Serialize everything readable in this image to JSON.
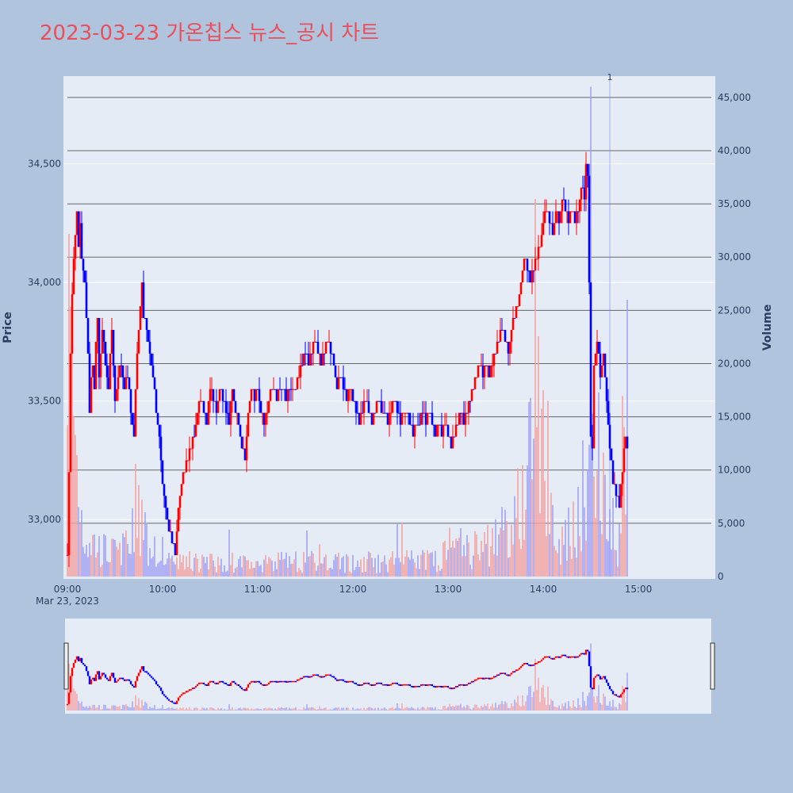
{
  "chart_data": {
    "type": "candlestick",
    "title": "2023-03-23 가온칩스 뉴스_공시 차트",
    "date_label": "Mar 23, 2023",
    "y_axis_title": "Price",
    "y2_axis_title": "Volume",
    "x_ticks": [
      "09:00",
      "10:00",
      "11:00",
      "12:00",
      "13:00",
      "14:00",
      "15:00"
    ],
    "y_ticks": [
      "33,000",
      "33,500",
      "34,000",
      "34,500"
    ],
    "y_tick_values": [
      33000,
      33500,
      34000,
      34500
    ],
    "y2_ticks": [
      "0",
      "5,000",
      "10,000",
      "15,000",
      "20,000",
      "25,000",
      "30,000",
      "35,000",
      "40,000",
      "45,000"
    ],
    "y2_tick_values": [
      0,
      5000,
      10000,
      15000,
      20000,
      25000,
      30000,
      35000,
      40000,
      45000
    ],
    "x_range_minutes": [
      0,
      390
    ],
    "y_range": [
      32750,
      34870
    ],
    "y2_range": [
      0,
      47000
    ],
    "annotation": {
      "text": "1",
      "time_minutes": 342
    },
    "colors": {
      "up": "#ff0000",
      "down": "#0000ff",
      "up_volume": "#f4a3a3",
      "down_volume": "#a3a3f4",
      "plot_bg": "#e5ecf6",
      "page_bg": "#b0c4de",
      "grid": "#ffffff",
      "volume_grid": "#666666",
      "title": "#e8505b"
    },
    "price_anchors": [
      [
        0,
        32850
      ],
      [
        1,
        33200
      ],
      [
        2,
        33700
      ],
      [
        3,
        33950
      ],
      [
        4,
        34100
      ],
      [
        5,
        34200
      ],
      [
        6,
        34300
      ],
      [
        7,
        34150
      ],
      [
        8,
        34250
      ],
      [
        9,
        34100
      ],
      [
        10,
        34050
      ],
      [
        11,
        34000
      ],
      [
        12,
        33850
      ],
      [
        13,
        33700
      ],
      [
        14,
        33450
      ],
      [
        15,
        33600
      ],
      [
        16,
        33650
      ],
      [
        17,
        33550
      ],
      [
        18,
        33750
      ],
      [
        19,
        33850
      ],
      [
        20,
        33600
      ],
      [
        22,
        33800
      ],
      [
        24,
        33650
      ],
      [
        26,
        33550
      ],
      [
        28,
        33800
      ],
      [
        30,
        33500
      ],
      [
        32,
        33600
      ],
      [
        34,
        33650
      ],
      [
        36,
        33550
      ],
      [
        38,
        33600
      ],
      [
        40,
        33450
      ],
      [
        42,
        33350
      ],
      [
        44,
        33700
      ],
      [
        46,
        33900
      ],
      [
        47,
        34000
      ],
      [
        48,
        33850
      ],
      [
        50,
        33800
      ],
      [
        52,
        33700
      ],
      [
        54,
        33600
      ],
      [
        56,
        33450
      ],
      [
        58,
        33350
      ],
      [
        60,
        33150
      ],
      [
        62,
        33050
      ],
      [
        64,
        32950
      ],
      [
        66,
        32900
      ],
      [
        68,
        32850
      ],
      [
        70,
        33050
      ],
      [
        72,
        33150
      ],
      [
        74,
        33200
      ],
      [
        76,
        33250
      ],
      [
        78,
        33300
      ],
      [
        80,
        33350
      ],
      [
        82,
        33450
      ],
      [
        84,
        33500
      ],
      [
        86,
        33450
      ],
      [
        88,
        33400
      ],
      [
        90,
        33550
      ],
      [
        92,
        33500
      ],
      [
        94,
        33450
      ],
      [
        96,
        33550
      ],
      [
        98,
        33500
      ],
      [
        100,
        33450
      ],
      [
        102,
        33400
      ],
      [
        104,
        33550
      ],
      [
        106,
        33450
      ],
      [
        108,
        33400
      ],
      [
        110,
        33300
      ],
      [
        112,
        33250
      ],
      [
        114,
        33450
      ],
      [
        116,
        33550
      ],
      [
        118,
        33500
      ],
      [
        120,
        33550
      ],
      [
        122,
        33450
      ],
      [
        124,
        33400
      ],
      [
        126,
        33450
      ],
      [
        128,
        33550
      ],
      [
        130,
        33550
      ],
      [
        132,
        33500
      ],
      [
        134,
        33550
      ],
      [
        136,
        33550
      ],
      [
        138,
        33500
      ],
      [
        140,
        33550
      ],
      [
        142,
        33550
      ],
      [
        144,
        33550
      ],
      [
        146,
        33600
      ],
      [
        148,
        33650
      ],
      [
        150,
        33700
      ],
      [
        152,
        33650
      ],
      [
        154,
        33700
      ],
      [
        156,
        33750
      ],
      [
        158,
        33700
      ],
      [
        160,
        33650
      ],
      [
        162,
        33700
      ],
      [
        164,
        33750
      ],
      [
        166,
        33700
      ],
      [
        168,
        33650
      ],
      [
        170,
        33550
      ],
      [
        172,
        33600
      ],
      [
        174,
        33550
      ],
      [
        176,
        33500
      ],
      [
        178,
        33550
      ],
      [
        180,
        33500
      ],
      [
        182,
        33450
      ],
      [
        184,
        33400
      ],
      [
        186,
        33450
      ],
      [
        188,
        33500
      ],
      [
        190,
        33450
      ],
      [
        192,
        33400
      ],
      [
        194,
        33450
      ],
      [
        196,
        33500
      ],
      [
        198,
        33450
      ],
      [
        200,
        33450
      ],
      [
        202,
        33400
      ],
      [
        204,
        33450
      ],
      [
        206,
        33500
      ],
      [
        208,
        33450
      ],
      [
        210,
        33400
      ],
      [
        212,
        33450
      ],
      [
        214,
        33450
      ],
      [
        216,
        33400
      ],
      [
        218,
        33350
      ],
      [
        220,
        33400
      ],
      [
        222,
        33400
      ],
      [
        224,
        33450
      ],
      [
        226,
        33400
      ],
      [
        228,
        33450
      ],
      [
        230,
        33400
      ],
      [
        232,
        33350
      ],
      [
        234,
        33400
      ],
      [
        236,
        33350
      ],
      [
        238,
        33400
      ],
      [
        240,
        33350
      ],
      [
        242,
        33300
      ],
      [
        244,
        33350
      ],
      [
        246,
        33400
      ],
      [
        248,
        33450
      ],
      [
        250,
        33400
      ],
      [
        252,
        33450
      ],
      [
        254,
        33500
      ],
      [
        256,
        33550
      ],
      [
        258,
        33600
      ],
      [
        260,
        33650
      ],
      [
        262,
        33600
      ],
      [
        264,
        33650
      ],
      [
        266,
        33600
      ],
      [
        268,
        33650
      ],
      [
        270,
        33700
      ],
      [
        272,
        33750
      ],
      [
        274,
        33800
      ],
      [
        276,
        33750
      ],
      [
        278,
        33700
      ],
      [
        280,
        33800
      ],
      [
        282,
        33850
      ],
      [
        284,
        33900
      ],
      [
        286,
        34000
      ],
      [
        288,
        34100
      ],
      [
        290,
        34050
      ],
      [
        292,
        34000
      ],
      [
        294,
        34050
      ],
      [
        296,
        34100
      ],
      [
        298,
        34150
      ],
      [
        300,
        34250
      ],
      [
        302,
        34300
      ],
      [
        304,
        34250
      ],
      [
        306,
        34200
      ],
      [
        308,
        34300
      ],
      [
        310,
        34250
      ],
      [
        312,
        34350
      ],
      [
        314,
        34300
      ],
      [
        316,
        34250
      ],
      [
        318,
        34300
      ],
      [
        320,
        34250
      ],
      [
        322,
        34300
      ],
      [
        324,
        34400
      ],
      [
        326,
        34350
      ],
      [
        327,
        34500
      ],
      [
        328,
        34450
      ],
      [
        329,
        34000
      ],
      [
        330,
        33350
      ],
      [
        331,
        33300
      ],
      [
        332,
        33650
      ],
      [
        334,
        33750
      ],
      [
        336,
        33600
      ],
      [
        338,
        33700
      ],
      [
        340,
        33500
      ],
      [
        342,
        33300
      ],
      [
        344,
        33150
      ],
      [
        346,
        33100
      ],
      [
        348,
        33050
      ],
      [
        350,
        33200
      ],
      [
        352,
        33350
      ],
      [
        353,
        33300
      ]
    ],
    "volume_profile": [
      [
        0,
        30000
      ],
      [
        3,
        22000
      ],
      [
        6,
        12000
      ],
      [
        10,
        5000
      ],
      [
        20,
        3000
      ],
      [
        30,
        2500
      ],
      [
        40,
        3500
      ],
      [
        45,
        10000
      ],
      [
        48,
        4500
      ],
      [
        55,
        3500
      ],
      [
        60,
        2500
      ],
      [
        70,
        1500
      ],
      [
        100,
        1500
      ],
      [
        150,
        1600
      ],
      [
        200,
        1600
      ],
      [
        230,
        2000
      ],
      [
        260,
        3000
      ],
      [
        280,
        5000
      ],
      [
        290,
        10000
      ],
      [
        296,
        18000
      ],
      [
        300,
        8000
      ],
      [
        310,
        3500
      ],
      [
        320,
        5000
      ],
      [
        328,
        15000
      ],
      [
        330,
        46000
      ],
      [
        332,
        20000
      ],
      [
        336,
        12000
      ],
      [
        340,
        6000
      ],
      [
        348,
        4000
      ],
      [
        353,
        25000
      ]
    ],
    "volume_spikes": [
      [
        300,
        17500
      ],
      [
        303,
        16500
      ],
      [
        328,
        10000
      ],
      [
        330,
        46000
      ],
      [
        353,
        26000
      ]
    ]
  }
}
